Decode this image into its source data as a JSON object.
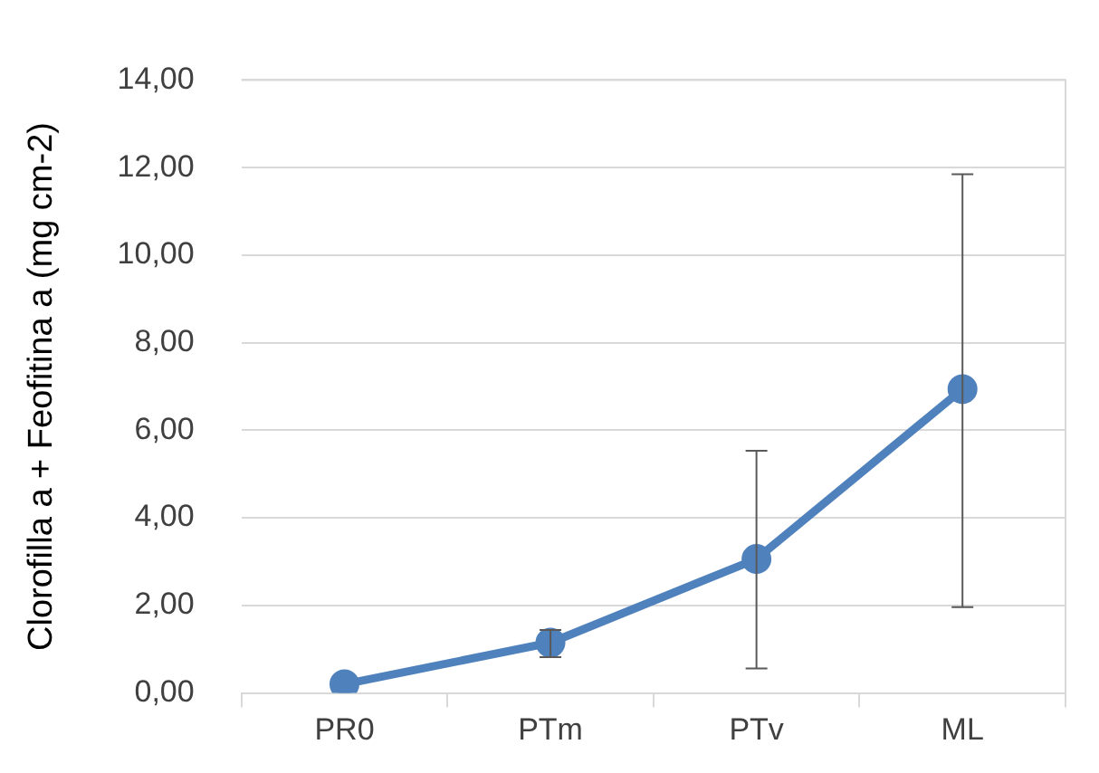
{
  "chart_data": {
    "type": "line",
    "ylabel": "Clorofilla a + Feofitina a (mg cm-2)",
    "categories": [
      "PR0",
      "PTm",
      "PTv",
      "ML"
    ],
    "series": [
      {
        "color": "#4f81bd",
        "values": [
          0.2,
          1.15,
          3.06,
          6.94
        ],
        "errors": [
          null,
          [
            0.82,
            1.44
          ],
          [
            0.56,
            5.53
          ],
          [
            1.96,
            11.85
          ]
        ]
      }
    ],
    "ylim": [
      0,
      14
    ],
    "yticks": [
      {
        "value": 0,
        "label": "0,00"
      },
      {
        "value": 2,
        "label": "2,00"
      },
      {
        "value": 4,
        "label": "4,00"
      },
      {
        "value": 6,
        "label": "6,00"
      },
      {
        "value": 8,
        "label": "8,00"
      },
      {
        "value": 10,
        "label": "10,00"
      },
      {
        "value": 12,
        "label": "12,00"
      },
      {
        "value": 14,
        "label": "14,00"
      }
    ],
    "grid": "y",
    "legend": false,
    "marker": "circle",
    "line_style": "solid"
  }
}
